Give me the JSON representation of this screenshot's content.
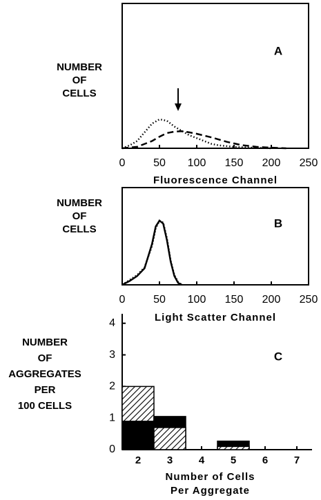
{
  "chart_data": [
    {
      "type": "line",
      "panel": "A",
      "ylabel_lines": [
        "NUMBER",
        "OF",
        "CELLS"
      ],
      "xlabel_lines": [
        "Fluorescence Channel"
      ],
      "xlim": [
        0,
        250
      ],
      "xticks": [
        0,
        50,
        100,
        150,
        200,
        250
      ],
      "ylim": [
        0,
        100
      ],
      "arrow_x": 75,
      "series": [
        {
          "style": "dotted",
          "color": "#000000",
          "x": [
            0,
            10,
            20,
            30,
            40,
            50,
            60,
            70,
            80,
            90,
            100,
            110,
            120,
            130,
            140,
            150,
            170,
            200
          ],
          "values": [
            0,
            2,
            5,
            11,
            17,
            20,
            19,
            15,
            12,
            9,
            7,
            5,
            3,
            2,
            1.5,
            1,
            0.5,
            0
          ]
        },
        {
          "style": "dashed",
          "color": "#000000",
          "x": [
            0,
            20,
            40,
            50,
            60,
            70,
            80,
            90,
            100,
            120,
            140,
            160,
            180,
            200,
            220
          ],
          "values": [
            0,
            1,
            5,
            8,
            10.5,
            11.5,
            11.8,
            11,
            10,
            7.5,
            4.5,
            2.2,
            1,
            0.4,
            0
          ]
        }
      ]
    },
    {
      "type": "line",
      "panel": "B",
      "ylabel_lines": [
        "NUMBER",
        "OF",
        "CELLS"
      ],
      "xlabel_lines": [
        "Light Scatter Channel"
      ],
      "xlim": [
        0,
        250
      ],
      "xticks": [
        0,
        50,
        100,
        150,
        200,
        250
      ],
      "ylim": [
        0,
        100
      ],
      "series": [
        {
          "style": "solid",
          "color": "#000000",
          "x": [
            0,
            10,
            20,
            30,
            40,
            45,
            50,
            55,
            60,
            65,
            70,
            75,
            80
          ],
          "values": [
            0,
            4,
            9,
            17,
            42,
            60,
            66,
            63,
            46,
            24,
            9,
            2,
            0
          ]
        },
        {
          "style": "dotted",
          "color": "#000000",
          "x": [
            0,
            10,
            20,
            30,
            40,
            45,
            50,
            55,
            60,
            65,
            70,
            75,
            80
          ],
          "values": [
            0,
            5,
            10,
            18,
            40,
            58,
            66,
            64,
            48,
            25,
            10,
            3,
            0
          ]
        }
      ]
    },
    {
      "type": "bar",
      "panel": "C",
      "ylabel_lines": [
        "NUMBER",
        "OF",
        "AGGREGATES",
        "PER",
        "100 CELLS"
      ],
      "xlabel_lines": [
        "Number of Cells",
        "Per Aggregate"
      ],
      "categories": [
        "2",
        "3",
        "4",
        "5",
        "6",
        "7"
      ],
      "ylim": [
        0,
        4.3
      ],
      "yticks": [
        0,
        1,
        2,
        3,
        4
      ],
      "series": [
        {
          "style": "solid",
          "color": "#000000",
          "values": [
            0.9,
            1.05,
            0,
            0.27,
            0,
            0
          ]
        },
        {
          "style": "hatched",
          "color": "#000000",
          "values": [
            2.0,
            0.7,
            0,
            0.1,
            0,
            0
          ]
        }
      ]
    }
  ]
}
